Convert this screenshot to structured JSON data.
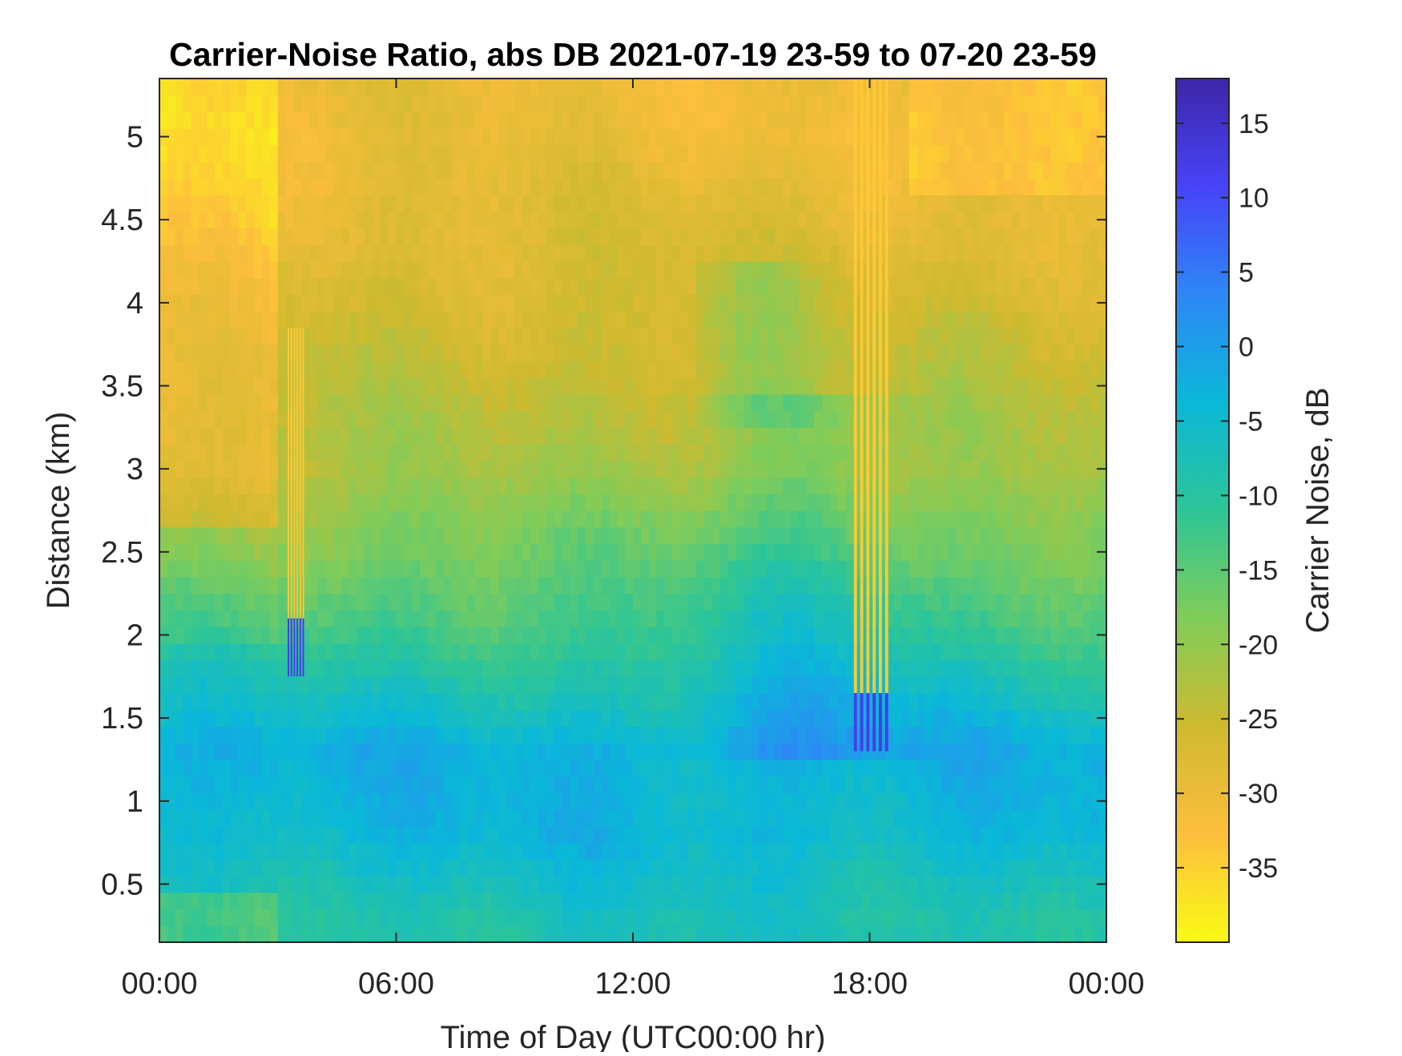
{
  "chart_data": {
    "type": "heatmap",
    "title": "Carrier-Noise Ratio, abs DB 2021-07-19 23-59 to 07-20 23-59",
    "xlabel": "Time of Day (UTC00:00 hr)",
    "ylabel": "Distance (km)",
    "xlim_hours": [
      0,
      24
    ],
    "ylim_km": [
      0.15,
      5.35
    ],
    "x_ticks": [
      {
        "hours": 0,
        "label": "00:00"
      },
      {
        "hours": 6,
        "label": "06:00"
      },
      {
        "hours": 12,
        "label": "12:00"
      },
      {
        "hours": 18,
        "label": "18:00"
      },
      {
        "hours": 24,
        "label": "00:00"
      }
    ],
    "y_ticks": [
      {
        "value": 0.5,
        "label": "0.5"
      },
      {
        "value": 1,
        "label": "1"
      },
      {
        "value": 1.5,
        "label": "1.5"
      },
      {
        "value": 2,
        "label": "2"
      },
      {
        "value": 2.5,
        "label": "2.5"
      },
      {
        "value": 3,
        "label": "3"
      },
      {
        "value": 3.5,
        "label": "3.5"
      },
      {
        "value": 4,
        "label": "4"
      },
      {
        "value": 4.5,
        "label": "4.5"
      },
      {
        "value": 5,
        "label": "5"
      }
    ],
    "colorbar": {
      "label": "Carrier Noise, dB",
      "range": [
        -40,
        18
      ],
      "ticks": [
        {
          "value": 15,
          "label": "15"
        },
        {
          "value": 10,
          "label": "10"
        },
        {
          "value": 5,
          "label": "5"
        },
        {
          "value": 0,
          "label": "0"
        },
        {
          "value": -5,
          "label": "-5"
        },
        {
          "value": -10,
          "label": "-10"
        },
        {
          "value": -15,
          "label": "-15"
        },
        {
          "value": -20,
          "label": "-20"
        },
        {
          "value": -25,
          "label": "-25"
        },
        {
          "value": -30,
          "label": "-30"
        },
        {
          "value": -35,
          "label": "-35"
        }
      ],
      "colormap": [
        "#3e26a8",
        "#4743f8",
        "#2e87f7",
        "#0ab8d8",
        "#2dc597",
        "#81cc59",
        "#cfba2f",
        "#fdbe3d",
        "#f9fb15"
      ]
    },
    "approximate_cnr_profile": [
      {
        "distance_km": 0.3,
        "cnr_db": -8
      },
      {
        "distance_km": 0.8,
        "cnr_db": -4
      },
      {
        "distance_km": 1.3,
        "cnr_db": -3
      },
      {
        "distance_km": 2.0,
        "cnr_db": -12
      },
      {
        "distance_km": 3.0,
        "cnr_db": -22
      },
      {
        "distance_km": 4.0,
        "cnr_db": -26
      },
      {
        "distance_km": 5.0,
        "cnr_db": -30
      }
    ]
  }
}
